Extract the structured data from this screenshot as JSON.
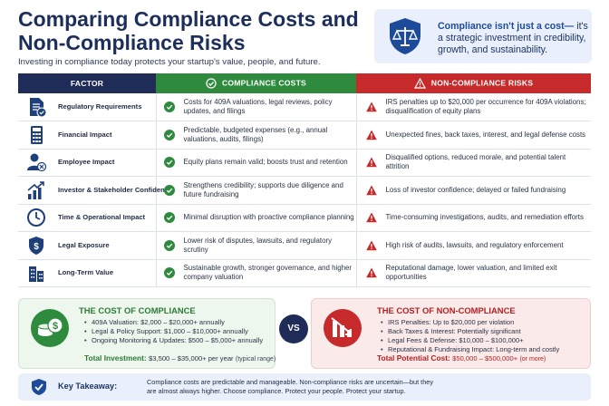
{
  "header": {
    "title": "Comparing Compliance Costs and Non-Compliance Risks",
    "subtitle": "Investing in compliance today protects your startup's value, people, and future."
  },
  "callout": {
    "icon": "shield-scales-icon",
    "headline": "Compliance isn't just a cost—",
    "body": "it's a strategic investment in credibility, growth, and sustainability."
  },
  "table": {
    "headers": {
      "factor": "FACTOR",
      "compliance": "COMPLIANCE COSTS",
      "noncompliance": "NON-COMPLIANCE RISKS"
    },
    "rows": [
      {
        "icon": "document-check-icon",
        "factor": "Regulatory Requirements",
        "compliance": "Costs for 409A valuations, legal reviews, policy updates, and filings",
        "noncompliance": "IRS penalties up to $20,000 per occurrence for 409A violations; disqualification of equity plans"
      },
      {
        "icon": "calculator-icon",
        "factor": "Financial Impact",
        "compliance": "Predictable, budgeted expenses (e.g., annual valuations, audits, filings)",
        "noncompliance": "Unexpected fines, back taxes, interest, and legal defense costs"
      },
      {
        "icon": "employee-icon",
        "factor": "Employee Impact",
        "compliance": "Equity plans remain valid; boosts trust and retention",
        "noncompliance": "Disqualified options, reduced morale, and potential talent attrition"
      },
      {
        "icon": "growth-chart-icon",
        "factor": "Investor & Stakeholder Confidence",
        "compliance": "Strengthens credibility; supports due diligence and future fundraising",
        "noncompliance": "Loss of investor confidence; delayed or failed fundraising"
      },
      {
        "icon": "clock-icon",
        "factor": "Time & Operational Impact",
        "compliance": "Minimal disruption with proactive compliance planning",
        "noncompliance": "Time-consuming investigations, audits, and remediation efforts"
      },
      {
        "icon": "shield-dollar-icon",
        "factor": "Legal Exposure",
        "compliance": "Lower risk of disputes, lawsuits, and regulatory scrutiny",
        "noncompliance": "High risk of audits, lawsuits, and regulatory enforcement"
      },
      {
        "icon": "buildings-icon",
        "factor": "Long-Term Value",
        "compliance": "Sustainable growth, stronger governance, and higher company valuation",
        "noncompliance": "Reputational damage, lower valuation, and limited exit opportunities"
      }
    ]
  },
  "cost_of_compliance": {
    "title": "THE COST OF COMPLIANCE",
    "items": [
      "409A Valuation: $2,000 – $20,000+ annually",
      "Legal & Policy Support: $1,000 – $10,000+ annually",
      "Ongoing Monitoring & Updates: $500 – $5,000+ annually"
    ],
    "total_label": "Total Investment:",
    "total_value": "$3,500 – $35,000+ per year",
    "total_note": "(typical range)"
  },
  "vs_label": "VS",
  "cost_of_noncompliance": {
    "title": "THE COST OF NON-COMPLIANCE",
    "items": [
      "IRS Penalties: Up to $20,000 per violation",
      "Back Taxes & Interest: Potentially significant",
      "Legal Fees & Defense: $10,000 – $100,000+",
      "Reputational & Fundraising Impact: Long-term and costly"
    ],
    "total_label": "Total Potential Cost:",
    "total_value": "$50,000 – $500,000+",
    "total_note": "(or more)"
  },
  "takeaway": {
    "label": "Key Takeaway:",
    "text": "Compliance costs are predictable and manageable. Non-compliance risks are uncertain—but they are almost always higher. Choose compliance. Protect your people. Protect your startup."
  },
  "colors": {
    "navy": "#1e2c57",
    "green": "#2e8b3e",
    "red": "#c72a2a",
    "light_blue": "#e9f0fb"
  }
}
